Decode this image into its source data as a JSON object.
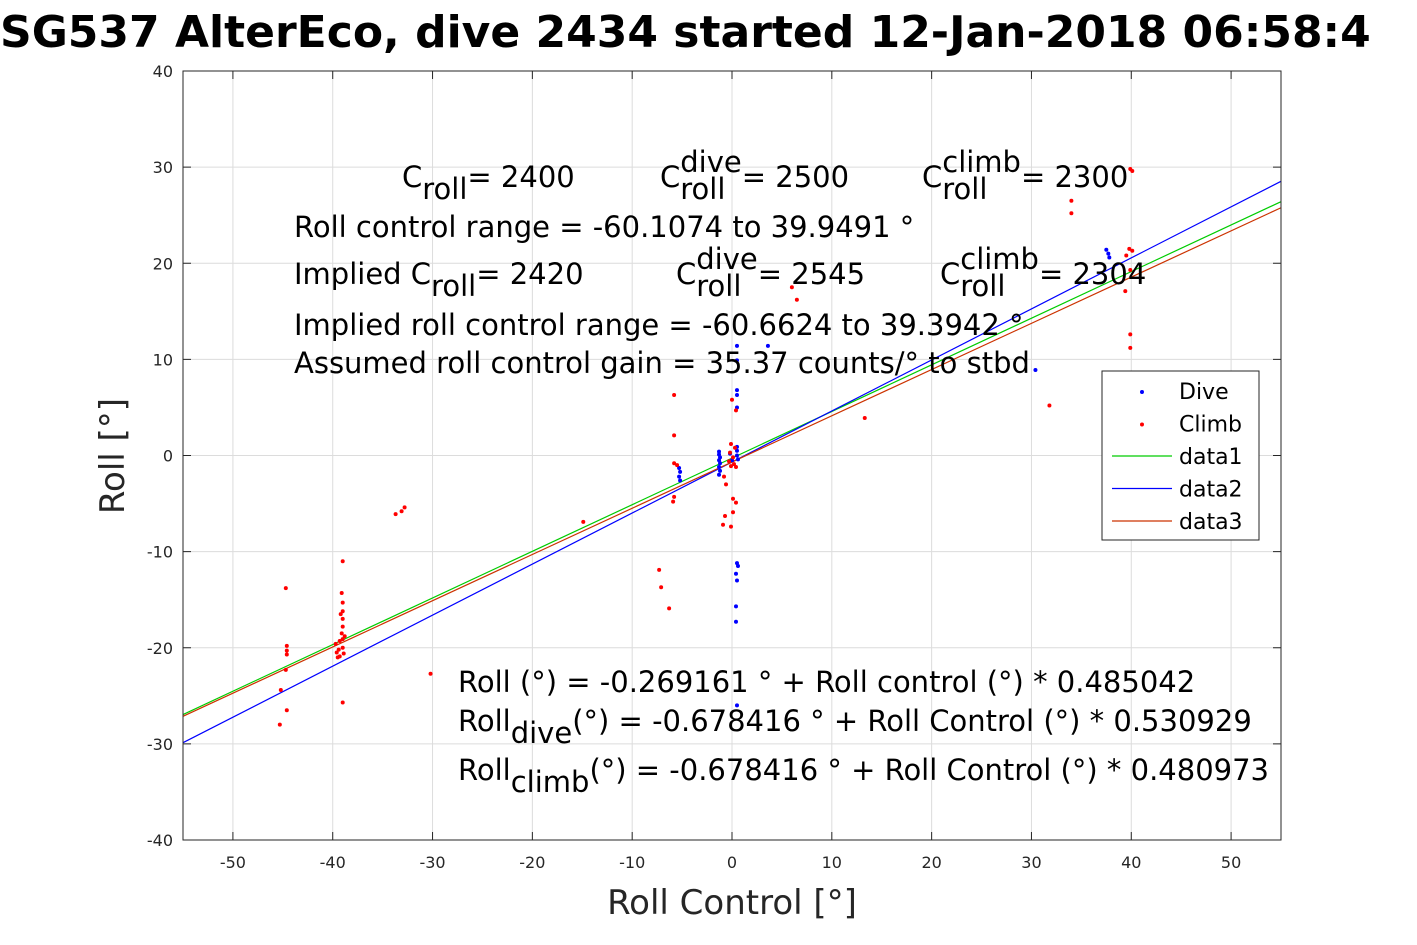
{
  "chart_data": {
    "type": "scatter",
    "title": "SG537 AlterEco, dive 2434 started 12-Jan-2018 06:58:4",
    "xlabel": "Roll Control [°]",
    "ylabel": "Roll [°]",
    "xlim": [
      -55,
      55
    ],
    "ylim": [
      -40,
      40
    ],
    "xticks": [
      -50,
      -40,
      -30,
      -20,
      -10,
      0,
      10,
      20,
      30,
      40,
      50
    ],
    "yticks": [
      -40,
      -30,
      -20,
      -10,
      0,
      10,
      20,
      30,
      40
    ],
    "xtick_labels": [
      "-50",
      "-40",
      "-30",
      "-20",
      "-10",
      "0",
      "10",
      "20",
      "30",
      "40",
      "50"
    ],
    "ytick_labels": [
      "-40",
      "-30",
      "-20",
      "-10",
      "0",
      "10",
      "20",
      "30",
      "40"
    ],
    "grid": true,
    "legend_position": "right",
    "series": [
      {
        "name": "Dive",
        "kind": "points",
        "color": "#0000ff",
        "points": [
          [
            37.5,
            21.4
          ],
          [
            37.7,
            21.0
          ],
          [
            37.8,
            20.6
          ],
          [
            30.4,
            8.9
          ],
          [
            3.6,
            11.4
          ],
          [
            0.5,
            11.4
          ],
          [
            0.5,
            9.9
          ],
          [
            0.5,
            6.8
          ],
          [
            0.5,
            6.3
          ],
          [
            0.5,
            5.0
          ],
          [
            0.5,
            0.9
          ],
          [
            0.5,
            0.5
          ],
          [
            0.5,
            0.0
          ],
          [
            0.6,
            -0.4
          ],
          [
            0.5,
            -11.2
          ],
          [
            0.6,
            -11.5
          ],
          [
            0.4,
            -12.3
          ],
          [
            0.5,
            -13.0
          ],
          [
            0.4,
            -15.7
          ],
          [
            0.4,
            -17.3
          ],
          [
            0.5,
            -26.0
          ],
          [
            -1.3,
            0.4
          ],
          [
            -1.3,
            0.1
          ],
          [
            -1.2,
            -0.2
          ],
          [
            -1.3,
            -0.5
          ],
          [
            -1.2,
            -0.8
          ],
          [
            -1.3,
            -1.2
          ],
          [
            -1.2,
            -1.6
          ],
          [
            -1.3,
            -2.0
          ],
          [
            -5.3,
            -1.3
          ],
          [
            -5.2,
            -1.7
          ],
          [
            -5.3,
            -2.2
          ],
          [
            -5.2,
            -2.6
          ],
          [
            0.0,
            -0.5
          ],
          [
            -0.2,
            0.2
          ]
        ]
      },
      {
        "name": "Climb",
        "kind": "points",
        "color": "#ff0000",
        "points": [
          [
            39.9,
            29.8
          ],
          [
            40.1,
            29.6
          ],
          [
            34.0,
            26.5
          ],
          [
            34.0,
            25.2
          ],
          [
            39.8,
            21.5
          ],
          [
            40.1,
            21.3
          ],
          [
            39.5,
            20.8
          ],
          [
            39.9,
            19.3
          ],
          [
            39.4,
            17.1
          ],
          [
            39.9,
            12.6
          ],
          [
            39.9,
            11.2
          ],
          [
            31.8,
            5.2
          ],
          [
            13.3,
            3.9
          ],
          [
            6.0,
            17.5
          ],
          [
            6.5,
            16.2
          ],
          [
            0.0,
            5.8
          ],
          [
            0.4,
            4.7
          ],
          [
            -0.1,
            1.2
          ],
          [
            0.3,
            0.8
          ],
          [
            -0.2,
            0.3
          ],
          [
            0.1,
            -0.2
          ],
          [
            -0.3,
            -0.6
          ],
          [
            0.2,
            -0.9
          ],
          [
            -0.1,
            -1.1
          ],
          [
            0.4,
            -1.2
          ],
          [
            -0.8,
            -2.2
          ],
          [
            -0.6,
            -3.0
          ],
          [
            0.1,
            -4.5
          ],
          [
            0.4,
            -4.9
          ],
          [
            0.1,
            -5.9
          ],
          [
            -0.7,
            -6.3
          ],
          [
            -0.9,
            -7.2
          ],
          [
            -0.1,
            -7.4
          ],
          [
            -5.8,
            6.3
          ],
          [
            -5.8,
            2.1
          ],
          [
            -5.8,
            -0.8
          ],
          [
            -5.5,
            -1.0
          ],
          [
            -5.8,
            -4.3
          ],
          [
            -5.9,
            -4.8
          ],
          [
            -7.3,
            -11.9
          ],
          [
            -7.1,
            -13.7
          ],
          [
            -6.3,
            -15.9
          ],
          [
            -14.9,
            -6.9
          ],
          [
            -33.7,
            -6.1
          ],
          [
            -33.1,
            -5.8
          ],
          [
            -32.8,
            -5.4
          ],
          [
            -30.2,
            -22.7
          ],
          [
            -39.0,
            -11.0
          ],
          [
            -39.1,
            -14.3
          ],
          [
            -39.0,
            -15.3
          ],
          [
            -39.0,
            -16.2
          ],
          [
            -39.2,
            -16.5
          ],
          [
            -39.0,
            -17.0
          ],
          [
            -39.0,
            -17.8
          ],
          [
            -39.1,
            -18.5
          ],
          [
            -38.8,
            -18.8
          ],
          [
            -39.0,
            -19.1
          ],
          [
            -39.3,
            -19.3
          ],
          [
            -39.7,
            -19.6
          ],
          [
            -39.0,
            -20.0
          ],
          [
            -39.4,
            -20.2
          ],
          [
            -39.6,
            -20.5
          ],
          [
            -38.9,
            -20.6
          ],
          [
            -39.3,
            -20.9
          ],
          [
            -39.5,
            -21.0
          ],
          [
            -39.0,
            -25.7
          ],
          [
            -44.7,
            -13.8
          ],
          [
            -44.6,
            -19.8
          ],
          [
            -44.6,
            -20.3
          ],
          [
            -44.6,
            -20.7
          ],
          [
            -44.7,
            -22.3
          ],
          [
            -45.2,
            -24.4
          ],
          [
            -44.6,
            -26.5
          ],
          [
            -45.3,
            -28.0
          ]
        ]
      },
      {
        "name": "data1",
        "kind": "line",
        "color": "#00cc00",
        "intercept": -0.269161,
        "slope": 0.485042
      },
      {
        "name": "data2",
        "kind": "line",
        "color": "#0000ff",
        "intercept": -0.678416,
        "slope": 0.530929
      },
      {
        "name": "data3",
        "kind": "line",
        "color": "#cc3300",
        "intercept": -0.678416,
        "slope": 0.480973
      }
    ],
    "annotations": {
      "line1": [
        {
          "text": "C",
          "sub": "roll",
          "sup": "",
          "rest": " = 2400"
        },
        {
          "text": "C",
          "sub": "roll",
          "sup": "dive",
          "rest": " = 2500"
        },
        {
          "text": "C",
          "sub": "roll",
          "sup": "climb",
          "rest": " = 2300"
        }
      ],
      "range": "Roll control range = -60.1074 to 39.9491 °",
      "line3": [
        {
          "text": "Implied C",
          "sub": "roll",
          "sup": "",
          "rest": " = 2420"
        },
        {
          "text": "C",
          "sub": "roll",
          "sup": "dive",
          "rest": " = 2545"
        },
        {
          "text": "C",
          "sub": "roll",
          "sup": "climb",
          "rest": " = 2304"
        }
      ],
      "implied_range": "Implied roll control range = -60.6624 to 39.3942 °",
      "gain": "Assumed roll control gain = 35.37 counts/° to stbd",
      "fit1": "Roll (°) = -0.269161 ° + Roll control (°) * 0.485042",
      "fit2_main": "Roll",
      "fit2_sub": "dive",
      "fit2_rest": " (°) = -0.678416 ° + Roll Control (°) * 0.530929",
      "fit3_main": "Roll",
      "fit3_sub": "climb",
      "fit3_rest": " (°) = -0.678416 ° + Roll Control (°) * 0.480973"
    }
  }
}
